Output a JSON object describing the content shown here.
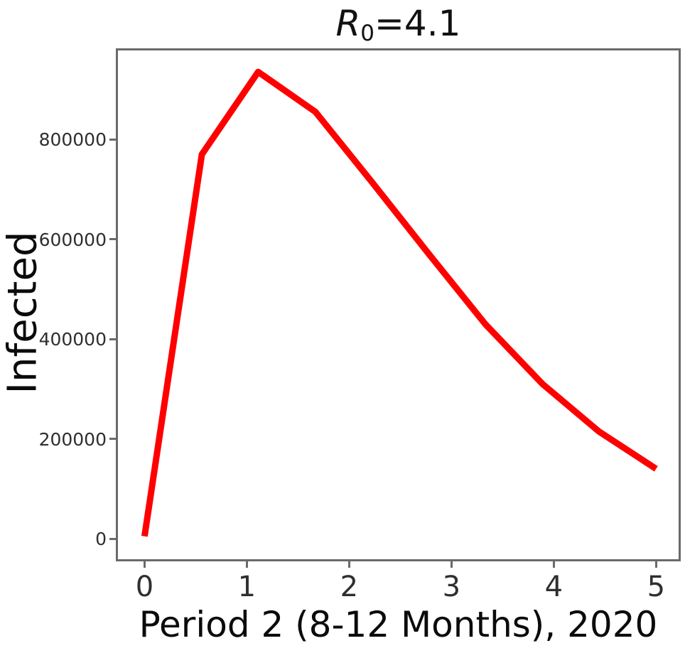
{
  "figure": {
    "title": {
      "r": "R",
      "sub": "0",
      "rest": "=4.1"
    },
    "ylabel": "Infected",
    "xlabel": "Period 2 (8-12 Months), 2020"
  },
  "colors": {
    "line": "#ff0000",
    "axis": "#6a6a6a",
    "tick_text": "#2f2f2f",
    "label_text": "#0b0b0b",
    "background": "#ffffff"
  },
  "chart_data": {
    "type": "line",
    "title": "R0=4.1",
    "xlabel": "Period 2 (8-12 Months), 2020",
    "ylabel": "Infected",
    "grid": false,
    "legend": "none",
    "xlim": [
      -0.26,
      5.22
    ],
    "ylim": [
      -41000,
      978000
    ],
    "xticks": [
      0,
      1,
      2,
      3,
      4,
      5
    ],
    "yticks": [
      0,
      200000,
      400000,
      600000,
      800000
    ],
    "series": [
      {
        "name": "Infected",
        "color": "#ff0000",
        "line_width": 9,
        "x": [
          0,
          0.56,
          1.11,
          1.67,
          2.22,
          2.78,
          3.33,
          3.89,
          4.44,
          5.0
        ],
        "y": [
          5000,
          770000,
          935000,
          855000,
          715000,
          570000,
          430000,
          310000,
          215000,
          140000
        ]
      }
    ]
  }
}
